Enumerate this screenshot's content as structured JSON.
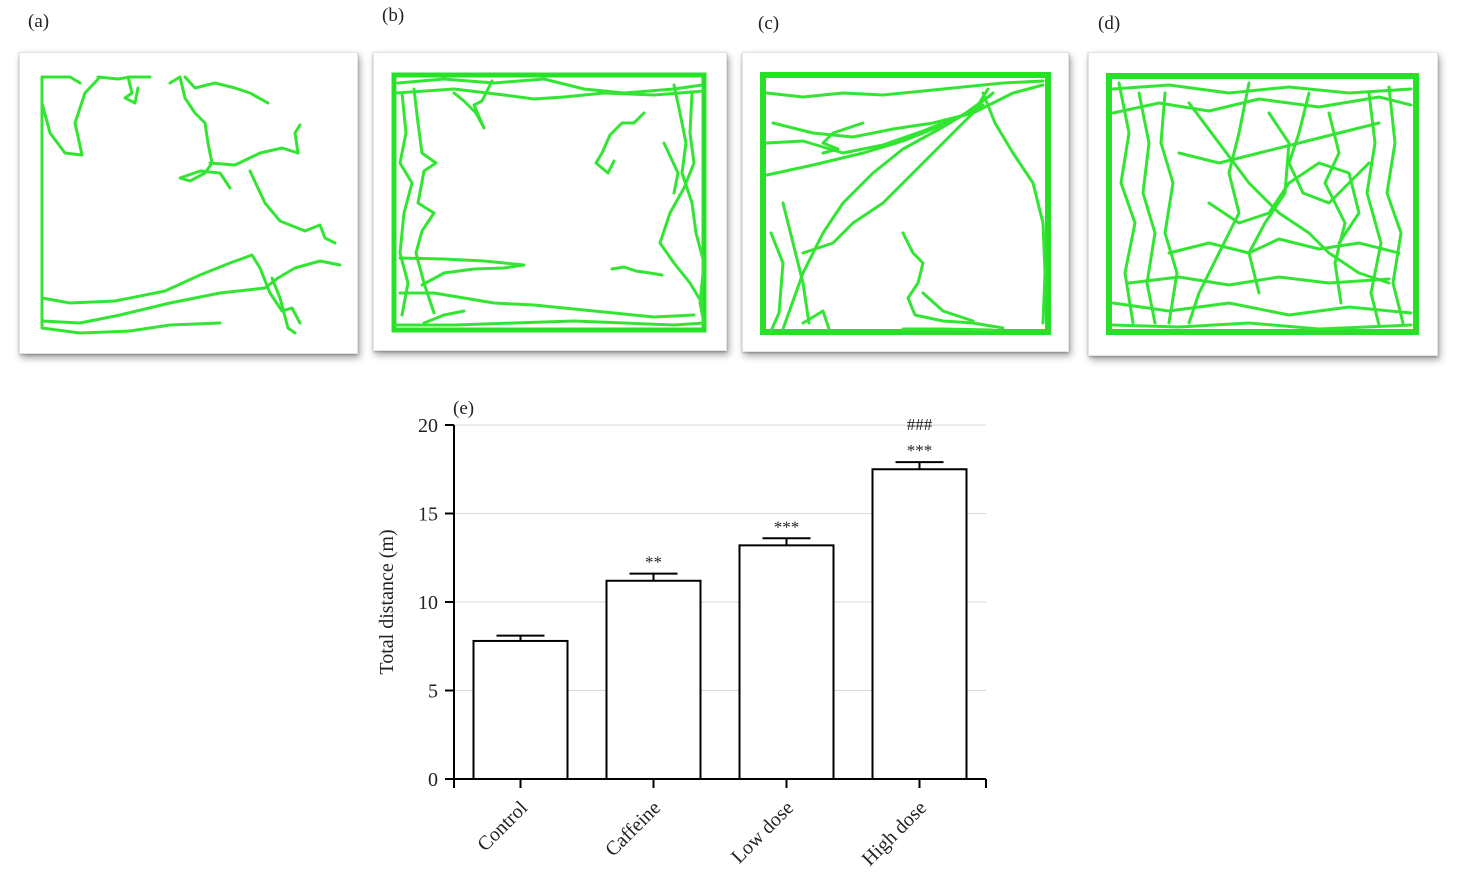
{
  "panels": [
    {
      "label": "(a)"
    },
    {
      "label": "(b)"
    },
    {
      "label": "(c)"
    },
    {
      "label": "(d)"
    }
  ],
  "colors": {
    "track": "#33e533",
    "bar_fill": "#ffffff",
    "bar_stroke": "#000000",
    "grid": "#d9d9d9"
  },
  "chart_data": {
    "type": "bar",
    "panel_label": "(e)",
    "categories": [
      "Control",
      "Caffeine",
      "Low dose",
      "High dose"
    ],
    "values": [
      7.8,
      11.2,
      13.2,
      17.5
    ],
    "errors": [
      0.3,
      0.4,
      0.4,
      0.4
    ],
    "annotations": [
      "",
      "**",
      "***",
      "***"
    ],
    "annotations_second": [
      "",
      "",
      "",
      "###"
    ],
    "xlabel": "",
    "ylabel": "Total distance (m)",
    "ylim": [
      0,
      20
    ],
    "yticks": [
      0,
      5,
      10,
      15,
      20
    ],
    "grid": true
  }
}
